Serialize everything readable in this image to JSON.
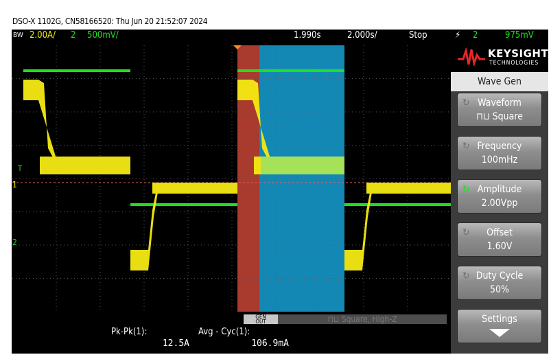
{
  "header": {
    "title": "DSO-X 1102G, CN58166520: Thu Jun 20 21:52:07 2024"
  },
  "topbar": {
    "bw": "BW",
    "ch1_scale": "2.00A/",
    "ch2_num": "2",
    "ch2_scale": "500mV/",
    "delay": "1.990s",
    "timebase": "2.000s/",
    "run_state": "Stop",
    "trigger_source": "2",
    "trigger_level": "975mV"
  },
  "markers": {
    "trigger_level": "T",
    "ch1": "1",
    "ch2": "2"
  },
  "colors": {
    "ch1": "#f5ea12",
    "ch2": "#1fe01f",
    "red_zone": "#a83a2e",
    "blue_zone": "#1488b4",
    "ref_line": "#e06060"
  },
  "sidebar": {
    "logo_text": "KEYSIGHT",
    "logo_sub": "TECHNOLOGIES",
    "menu_title": "Wave Gen",
    "softkeys": [
      {
        "label": "Waveform",
        "value": "Square",
        "icon": "rotary-knob-icon"
      },
      {
        "label": "Frequency",
        "value": "100mHz",
        "icon": "rotary-knob-icon"
      },
      {
        "label": "Amplitude",
        "value": "2.00Vpp",
        "icon": "rotary-knob-icon-active"
      },
      {
        "label": "Offset",
        "value": "1.60V",
        "icon": "rotary-knob-icon"
      },
      {
        "label": "Duty Cycle",
        "value": "50%",
        "icon": "rotary-knob-icon"
      },
      {
        "label": "Settings",
        "value": "",
        "icon": "down-arrow-icon"
      }
    ]
  },
  "bottom": {
    "gen_out_label_1": "GEN",
    "gen_out_label_2": "OUT",
    "gen_status": "Square, High-Z",
    "measurements": [
      {
        "label": "Pk-Pk(1):",
        "value": "12.5A"
      },
      {
        "label": "Avg - Cyc(1):",
        "value": "106.9mA"
      }
    ]
  }
}
